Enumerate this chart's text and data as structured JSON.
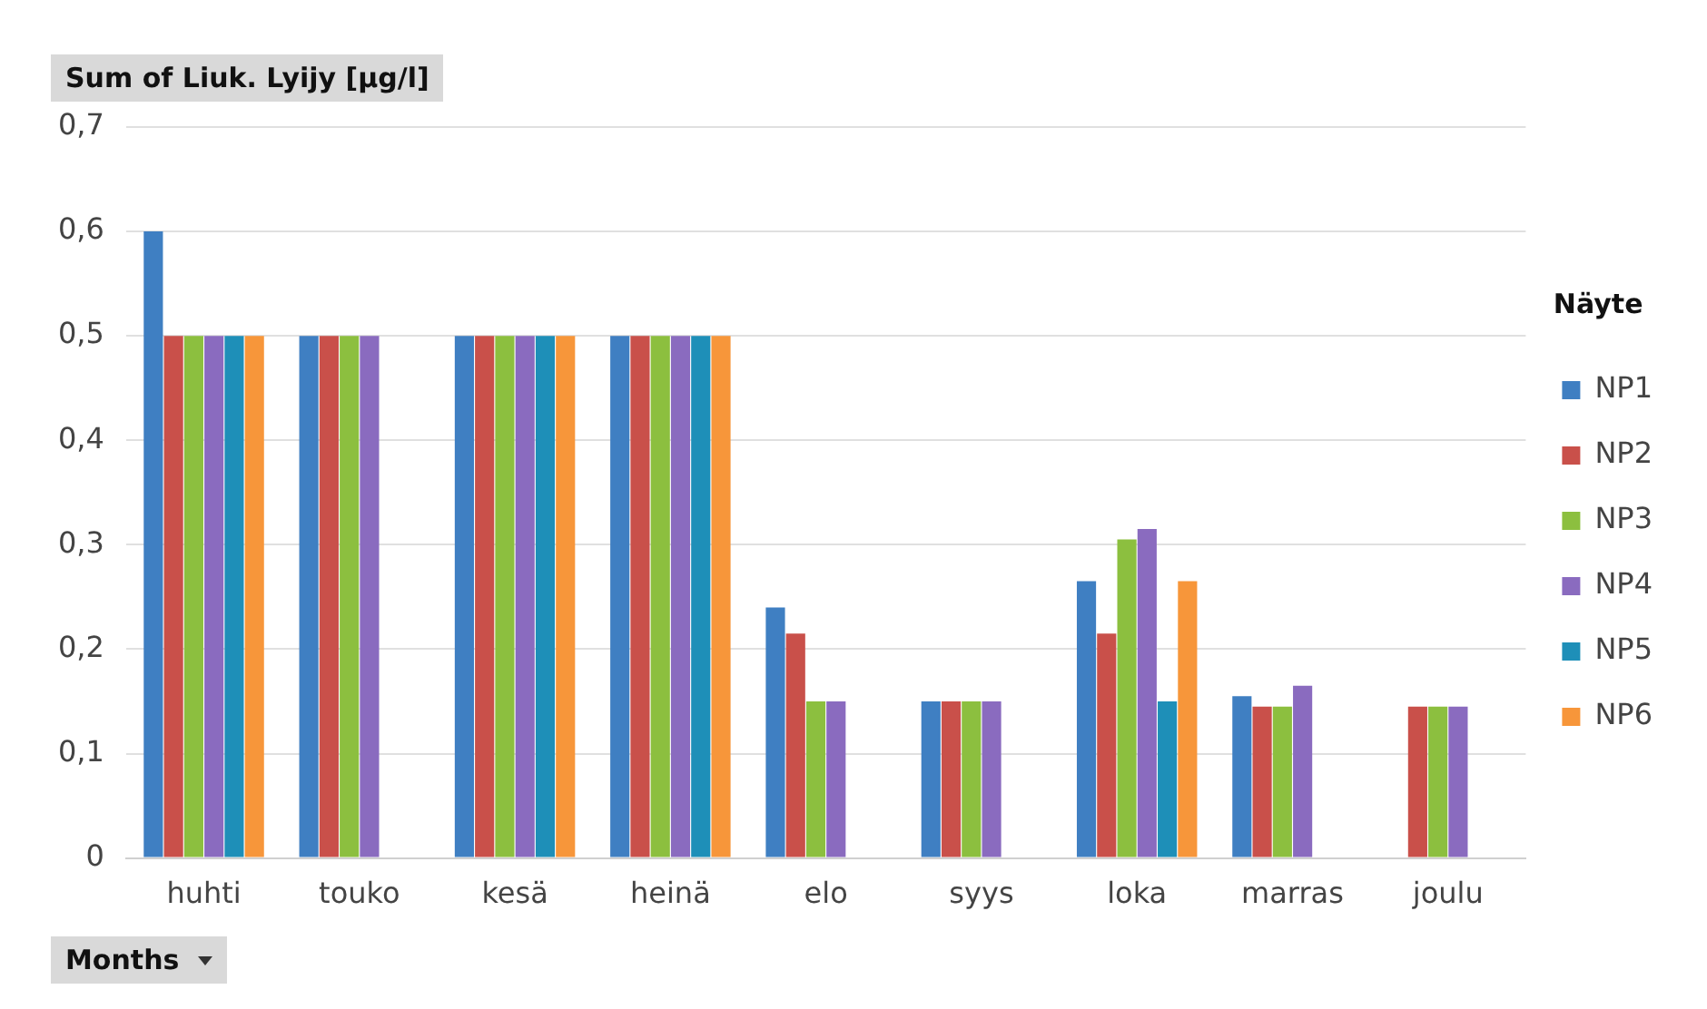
{
  "chart_data": {
    "type": "bar",
    "title": "Sum of Liuk. Lyijy [µg/l]",
    "xlabel": "Months",
    "legend_title": "Näyte",
    "categories": [
      "huhti",
      "touko",
      "kesä",
      "heinä",
      "elo",
      "syys",
      "loka",
      "marras",
      "joulu"
    ],
    "series": [
      {
        "name": "NP1",
        "color": "#3f7fc2",
        "values": [
          0.6,
          0.5,
          0.5,
          0.5,
          0.24,
          0.15,
          0.265,
          0.155,
          null
        ]
      },
      {
        "name": "NP2",
        "color": "#c9504a",
        "values": [
          0.5,
          0.5,
          0.5,
          0.5,
          0.215,
          0.15,
          0.215,
          0.145,
          0.145
        ]
      },
      {
        "name": "NP3",
        "color": "#8cbf3f",
        "values": [
          0.5,
          0.5,
          0.5,
          0.5,
          0.15,
          0.15,
          0.305,
          0.145,
          0.145
        ]
      },
      {
        "name": "NP4",
        "color": "#8a6bbf",
        "values": [
          0.5,
          0.5,
          0.5,
          0.5,
          0.15,
          0.15,
          0.315,
          0.165,
          0.145
        ]
      },
      {
        "name": "NP5",
        "color": "#1e8fb8",
        "values": [
          0.5,
          null,
          0.5,
          0.5,
          null,
          null,
          0.15,
          null,
          null
        ]
      },
      {
        "name": "NP6",
        "color": "#f7963a",
        "values": [
          0.5,
          null,
          0.5,
          0.5,
          null,
          null,
          0.265,
          null,
          null
        ]
      }
    ],
    "ylim": [
      0,
      0.7
    ],
    "yticks": [
      {
        "value": 0,
        "label": "0"
      },
      {
        "value": 0.1,
        "label": "0,1"
      },
      {
        "value": 0.2,
        "label": "0,2"
      },
      {
        "value": 0.3,
        "label": "0,3"
      },
      {
        "value": 0.4,
        "label": "0,4"
      },
      {
        "value": 0.5,
        "label": "0,5"
      },
      {
        "value": 0.6,
        "label": "0,6"
      },
      {
        "value": 0.7,
        "label": "0,7"
      }
    ],
    "grid": "y",
    "legend": "right"
  }
}
